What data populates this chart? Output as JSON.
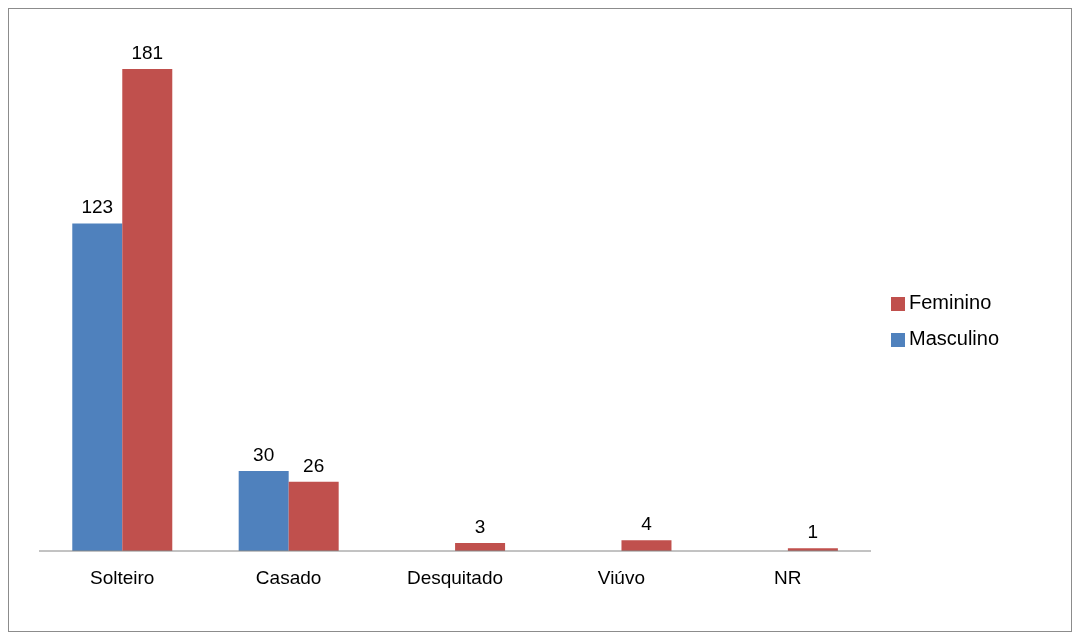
{
  "chart_data": {
    "type": "bar",
    "categories": [
      "Solteiro",
      "Casado",
      "Desquitado",
      "Viúvo",
      "NR"
    ],
    "series": [
      {
        "name": "Masculino",
        "color": "#4f81bd",
        "values": [
          123,
          30,
          null,
          null,
          null
        ]
      },
      {
        "name": "Feminino",
        "color": "#c0504d",
        "values": [
          181,
          26,
          3,
          4,
          1
        ]
      }
    ],
    "data_labels": true,
    "legend": "right",
    "grid": false
  }
}
